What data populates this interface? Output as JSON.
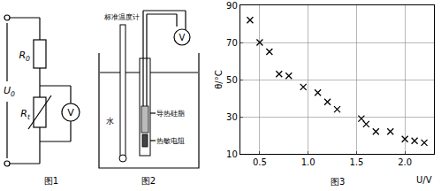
{
  "chart_data": {
    "type": "scatter",
    "caption": "图3",
    "x_label": "U/V",
    "y_label": "θ/°C",
    "x": [
      0.4,
      0.5,
      0.6,
      0.7,
      0.8,
      0.95,
      1.1,
      1.2,
      1.3,
      1.55,
      1.6,
      1.7,
      1.85,
      2.0,
      2.1,
      2.2
    ],
    "values": [
      82,
      70,
      65,
      53,
      52,
      46,
      43,
      38,
      34,
      29,
      26,
      22,
      22,
      18,
      17,
      16
    ],
    "xlim": [
      0.3,
      2.3
    ],
    "xticks": [
      0.5,
      {
        "value": 1,
        "label": "1.0"
      },
      1.5,
      {
        "value": 2,
        "label": "2.0"
      }
    ],
    "ylim": [
      10,
      90
    ],
    "yticks": [
      10,
      30,
      50,
      70,
      90
    ],
    "grid": true,
    "marker": "x",
    "color": "#000000"
  },
  "figure1": {
    "caption": "图1",
    "source": "U0",
    "fixed_resistor": "R0",
    "thermistor": "Rt",
    "meter": "V"
  },
  "figure2": {
    "caption": "图2",
    "thermometer": "标准温度计",
    "water": "水",
    "grease": "导热硅脂",
    "thermistor": "热敏电阻",
    "meter": "V"
  }
}
